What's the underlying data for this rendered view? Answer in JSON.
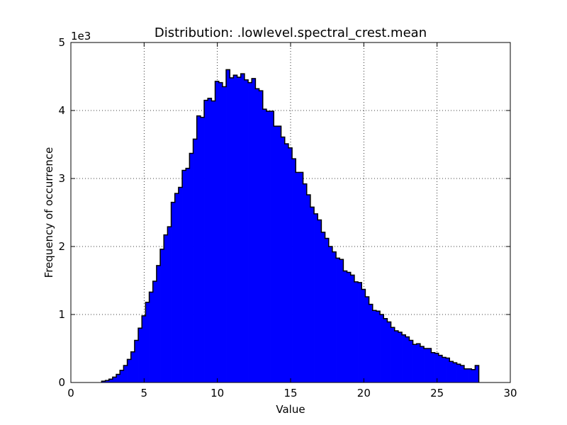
{
  "chart_data": {
    "type": "bar",
    "title": "Distribution: .lowlevel.spectral_crest.mean",
    "xlabel": "Value",
    "ylabel": "Frequency of occurrence",
    "y_multiplier_label": "1e3",
    "xlim": [
      0,
      30
    ],
    "ylim": [
      0,
      5000
    ],
    "xticks": [
      0,
      5,
      10,
      15,
      20,
      25,
      30
    ],
    "yticks": [
      0,
      1,
      2,
      3,
      4,
      5
    ],
    "grid": true,
    "bar_color": "#0000ff",
    "edge_color": "#000000",
    "bin_start": 2.1,
    "bin_width": 0.25,
    "values": [
      20,
      30,
      50,
      80,
      120,
      180,
      250,
      340,
      450,
      620,
      800,
      980,
      1180,
      1330,
      1490,
      1720,
      1960,
      2170,
      2290,
      2650,
      2780,
      2870,
      3120,
      3150,
      3370,
      3580,
      3920,
      3900,
      4150,
      4180,
      4140,
      4430,
      4410,
      4350,
      4600,
      4480,
      4520,
      4490,
      4540,
      4450,
      4410,
      4470,
      4320,
      4290,
      4020,
      3990,
      3990,
      3770,
      3770,
      3610,
      3510,
      3450,
      3290,
      3090,
      3090,
      2920,
      2760,
      2580,
      2480,
      2390,
      2210,
      2120,
      2000,
      1920,
      1830,
      1810,
      1640,
      1620,
      1580,
      1480,
      1470,
      1370,
      1260,
      1150,
      1060,
      1050,
      1000,
      940,
      890,
      810,
      760,
      740,
      700,
      670,
      620,
      560,
      570,
      530,
      500,
      500,
      440,
      430,
      400,
      370,
      360,
      310,
      290,
      270,
      250,
      200,
      200,
      190,
      250
    ]
  }
}
